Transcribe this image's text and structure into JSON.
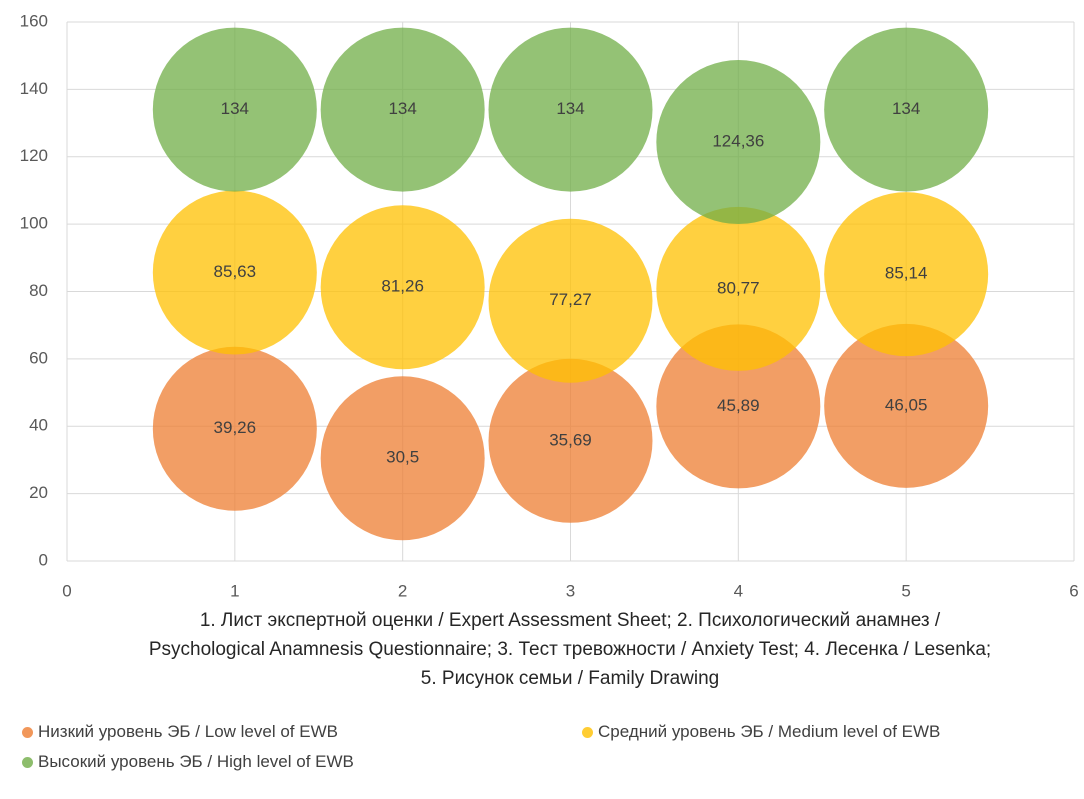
{
  "chart_data": {
    "type": "bubble",
    "x_label": "1. Лист экспертной оценки / Expert Assessment Sheet; 2. Психологический анамнез / Psychological Anamnesis Questionnaire; 3. Тест тревожности / Anxiety Test; 4. Лесенка / Lesenka; 5. Рисунок семьи / Family Drawing",
    "xlim": [
      0,
      6
    ],
    "xticks": [
      0,
      1,
      2,
      3,
      4,
      5,
      6
    ],
    "ylim": [
      0,
      160
    ],
    "yticks": [
      0,
      20,
      40,
      60,
      80,
      100,
      120,
      140,
      160
    ],
    "grid": true,
    "legend": "bottom",
    "series": [
      {
        "name": "Низкий уровень ЭБ / Low level of EWB",
        "color": "#ED7D31",
        "x": [
          1,
          2,
          3,
          4,
          5
        ],
        "values": [
          39.26,
          30.5,
          35.69,
          45.89,
          46.05
        ],
        "value_labels": [
          "39,26",
          "30,5",
          "35,69",
          "45,89",
          "46,05"
        ]
      },
      {
        "name": "Средний уровень ЭБ / Medium level of EWB",
        "color": "#FFC000",
        "x": [
          1,
          2,
          3,
          4,
          5
        ],
        "values": [
          85.63,
          81.26,
          77.27,
          80.77,
          85.14
        ],
        "value_labels": [
          "85,63",
          "81,26",
          "77,27",
          "80,77",
          "85,14"
        ]
      },
      {
        "name": "Высокий уровень ЭБ / High level of EWB",
        "color": "#70AD47",
        "x": [
          1,
          2,
          3,
          4,
          5
        ],
        "values": [
          134,
          134,
          134,
          124.36,
          134
        ],
        "value_labels": [
          "134",
          "134",
          "134",
          "124,36",
          "134"
        ]
      }
    ]
  }
}
